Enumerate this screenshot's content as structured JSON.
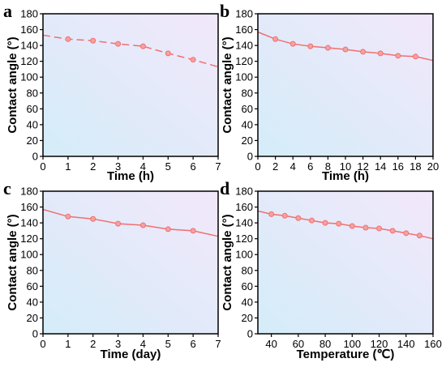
{
  "colors": {
    "series": "#f07070",
    "marker_fill": "#f7a0a0",
    "bg_top_right": "#f2e8fa",
    "bg_bottom_left": "#d4ecf9",
    "axis": "#000000"
  },
  "chart_data": [
    {
      "panel": "a",
      "type": "line",
      "line_style": "dashed",
      "xlabel": "Time (h)",
      "ylabel": "Contact angle (°)",
      "xlim": [
        0,
        7
      ],
      "ylim": [
        0,
        180
      ],
      "xticks": [
        0,
        1,
        2,
        3,
        4,
        5,
        6,
        7
      ],
      "yticks": [
        0,
        20,
        40,
        60,
        80,
        100,
        120,
        140,
        160,
        180
      ],
      "x": [
        0,
        1,
        2,
        3,
        4,
        5,
        6,
        7
      ],
      "values": [
        153,
        148,
        146,
        142,
        139,
        130,
        122,
        113
      ],
      "markers": [
        false,
        true,
        true,
        true,
        true,
        true,
        true,
        false
      ]
    },
    {
      "panel": "b",
      "type": "line",
      "line_style": "solid",
      "xlabel": "Time (h)",
      "ylabel": "Contact angle (°)",
      "xlim": [
        0,
        20
      ],
      "ylim": [
        0,
        180
      ],
      "xticks": [
        0,
        2,
        4,
        6,
        8,
        10,
        12,
        14,
        16,
        18,
        20
      ],
      "yticks": [
        0,
        20,
        40,
        60,
        80,
        100,
        120,
        140,
        160,
        180
      ],
      "x": [
        0,
        2,
        4,
        6,
        8,
        10,
        12,
        14,
        16,
        18,
        20
      ],
      "values": [
        157,
        148,
        142,
        139,
        137,
        135,
        132,
        130,
        127,
        126,
        121
      ],
      "markers": [
        false,
        true,
        true,
        true,
        true,
        true,
        true,
        true,
        true,
        true,
        false
      ]
    },
    {
      "panel": "c",
      "type": "line",
      "line_style": "solid",
      "xlabel": "Time (day)",
      "ylabel": "Contact angle (°)",
      "xlim": [
        0,
        7
      ],
      "ylim": [
        0,
        180
      ],
      "xticks": [
        0,
        1,
        2,
        3,
        4,
        5,
        6,
        7
      ],
      "yticks": [
        0,
        20,
        40,
        60,
        80,
        100,
        120,
        140,
        160,
        180
      ],
      "x": [
        0,
        1,
        2,
        3,
        4,
        5,
        6,
        7
      ],
      "values": [
        157,
        148,
        145,
        139,
        137,
        132,
        130,
        123
      ],
      "markers": [
        false,
        true,
        true,
        true,
        true,
        true,
        true,
        false
      ]
    },
    {
      "panel": "d",
      "type": "line",
      "line_style": "solid",
      "xlabel": "Temperature (℃)",
      "ylabel": "Contact angle (°)",
      "xlim": [
        30,
        160
      ],
      "ylim": [
        0,
        180
      ],
      "xticks": [
        40,
        60,
        80,
        100,
        120,
        140,
        160
      ],
      "yticks": [
        0,
        20,
        40,
        60,
        80,
        100,
        120,
        140,
        160,
        180
      ],
      "x": [
        30,
        40,
        50,
        60,
        70,
        80,
        90,
        100,
        110,
        120,
        130,
        140,
        150,
        160
      ],
      "values": [
        155,
        151,
        149,
        146,
        143,
        140,
        139,
        136,
        134,
        133,
        130,
        127,
        124,
        120
      ],
      "markers": [
        false,
        true,
        true,
        true,
        true,
        true,
        true,
        true,
        true,
        true,
        true,
        true,
        true,
        false
      ]
    }
  ]
}
